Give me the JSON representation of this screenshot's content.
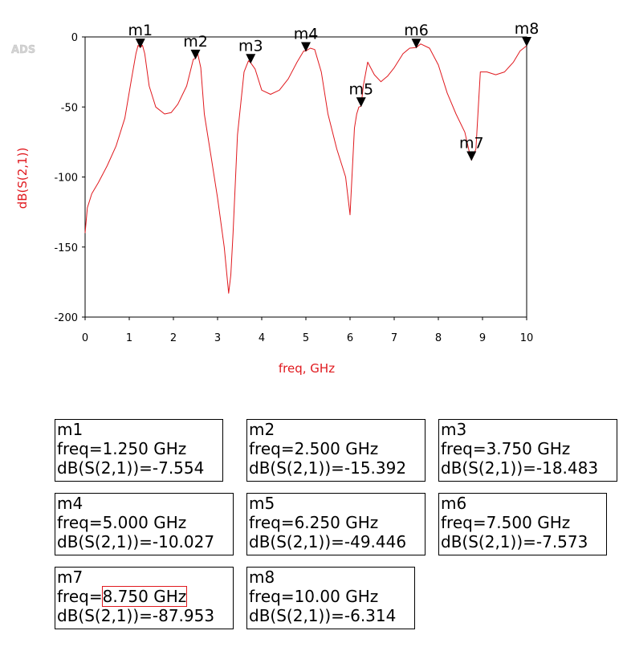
{
  "watermark": "ADS",
  "chart_data": {
    "type": "line",
    "xlabel": "freq, GHz",
    "ylabel": "dB(S(2,1))",
    "xlim": [
      0,
      10
    ],
    "ylim": [
      -200,
      0
    ],
    "x_ticks": [
      0,
      1,
      2,
      3,
      4,
      5,
      6,
      7,
      8,
      9,
      10
    ],
    "y_ticks": [
      0,
      -50,
      -100,
      -150,
      -200
    ],
    "grid": false,
    "line_color": "#e0191e",
    "series": [
      {
        "x": [
          0,
          0.05,
          0.15,
          0.3,
          0.5,
          0.7,
          0.9,
          1.05,
          1.15,
          1.2,
          1.25,
          1.3,
          1.35,
          1.45,
          1.6,
          1.8,
          1.95,
          2.1,
          2.3,
          2.45,
          2.5,
          2.55,
          2.62,
          2.7,
          2.85,
          3.0,
          3.15,
          3.25,
          3.3,
          3.35,
          3.45,
          3.6,
          3.7,
          3.75,
          3.85,
          4.0,
          4.2,
          4.4,
          4.6,
          4.8,
          4.95,
          5.0,
          5.1,
          5.2,
          5.35,
          5.5,
          5.7,
          5.9,
          6.0,
          6.1,
          6.15,
          6.2,
          6.25,
          6.3,
          6.4,
          6.55,
          6.7,
          6.85,
          7.0,
          7.2,
          7.35,
          7.5,
          7.6,
          7.8,
          8.0,
          8.2,
          8.4,
          8.6,
          8.7,
          8.75,
          8.85,
          8.95,
          9.1,
          9.3,
          9.5,
          9.7,
          9.85,
          10.0
        ],
        "y": [
          -140,
          -122,
          -112,
          -104,
          -92,
          -78,
          -58,
          -30,
          -12,
          -6,
          -7.554,
          -6,
          -12,
          -35,
          -50,
          -55,
          -54,
          -48,
          -35,
          -16,
          -15.392,
          -12,
          -22,
          -55,
          -85,
          -115,
          -150,
          -183,
          -170,
          -140,
          -70,
          -25,
          -17,
          -18.483,
          -23,
          -38,
          -41,
          -38,
          -30,
          -18,
          -10,
          -10.027,
          -8,
          -9,
          -25,
          -55,
          -80,
          -100,
          -127,
          -65,
          -55,
          -50,
          -49.446,
          -35,
          -18,
          -27,
          -32,
          -28,
          -22,
          -12,
          -8,
          -7.573,
          -5,
          -8,
          -20,
          -40,
          -55,
          -68,
          -82,
          -87.953,
          -80,
          -25,
          -25,
          -27,
          -25,
          -18,
          -10,
          -6.314
        ]
      }
    ],
    "markers": [
      {
        "name": "m1",
        "freq": 1.25,
        "value": -7.554,
        "freq_text": "freq=1.250 GHz",
        "value_text": "dB(S(2,1))=-7.554"
      },
      {
        "name": "m2",
        "freq": 2.5,
        "value": -15.392,
        "freq_text": "freq=2.500 GHz",
        "value_text": "dB(S(2,1))=-15.392"
      },
      {
        "name": "m3",
        "freq": 3.75,
        "value": -18.483,
        "freq_text": "freq=3.750 GHz",
        "value_text": "dB(S(2,1))=-18.483"
      },
      {
        "name": "m4",
        "freq": 5.0,
        "value": -10.027,
        "freq_text": "freq=5.000 GHz",
        "value_text": "dB(S(2,1))=-10.027"
      },
      {
        "name": "m5",
        "freq": 6.25,
        "value": -49.446,
        "freq_text": "freq=6.250 GHz",
        "value_text": "dB(S(2,1))=-49.446"
      },
      {
        "name": "m6",
        "freq": 7.5,
        "value": -7.573,
        "freq_text": "freq=7.500 GHz",
        "value_text": "dB(S(2,1))=-7.573"
      },
      {
        "name": "m7",
        "freq": 8.75,
        "value": -87.953,
        "freq_text": "freq=8.750 GHz",
        "value_text": "dB(S(2,1))=-87.953"
      },
      {
        "name": "m8",
        "freq": 10.0,
        "value": -6.314,
        "freq_text": "freq=10.00 GHz",
        "value_text": "dB(S(2,1))=-6.314"
      }
    ]
  }
}
